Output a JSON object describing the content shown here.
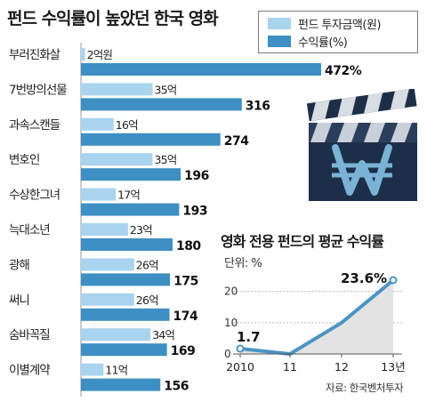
{
  "title": "펀드 수익률이 높았던 한국 영화",
  "legend": {
    "fund_label": "펀드 투자금액(원)",
    "return_label": "수익률(%)"
  },
  "colors": {
    "fund_bar": "#a9d4ef",
    "return_bar": "#3d8fc4",
    "line": "#4b95c6",
    "area": "#e3e3e3",
    "clapper_bg": "#1d2f48",
    "clapper_won": "#7ab3d6"
  },
  "icons": {
    "clapperboard": "clapperboard-won-icon"
  },
  "chart_data": [
    {
      "type": "bar",
      "orientation": "horizontal",
      "categories": [
        "부러진화살",
        "7번방의선물",
        "과속스캔들",
        "변호인",
        "수상한그녀",
        "늑대소년",
        "광해",
        "써니",
        "숨바꼭질",
        "이별계약"
      ],
      "series": [
        {
          "name": "펀드 투자금액(원)",
          "values": [
            2,
            35,
            16,
            35,
            17,
            23,
            26,
            26,
            34,
            11
          ],
          "labels": [
            "2억원",
            "35억",
            "16억",
            "35억",
            "17억",
            "23억",
            "26억",
            "26억",
            "34억",
            "11억"
          ]
        },
        {
          "name": "수익률(%)",
          "values": [
            472,
            316,
            274,
            196,
            193,
            180,
            175,
            174,
            169,
            156
          ],
          "labels": [
            "472%",
            "316",
            "274",
            "196",
            "193",
            "180",
            "175",
            "174",
            "169",
            "156"
          ]
        }
      ]
    },
    {
      "type": "area",
      "title": "영화 전용 펀드의 평균 수익률",
      "unit_label": "단위: %",
      "x": [
        "2010",
        "11",
        "12",
        "13년"
      ],
      "y": [
        1.7,
        0,
        10,
        23.6
      ],
      "point_labels": [
        "1.7",
        "",
        "",
        "23.6%"
      ],
      "y_ticks": [
        "0",
        "10",
        "20"
      ],
      "ylim": [
        0,
        25
      ],
      "source": "자료: 한국벤처투자"
    }
  ]
}
